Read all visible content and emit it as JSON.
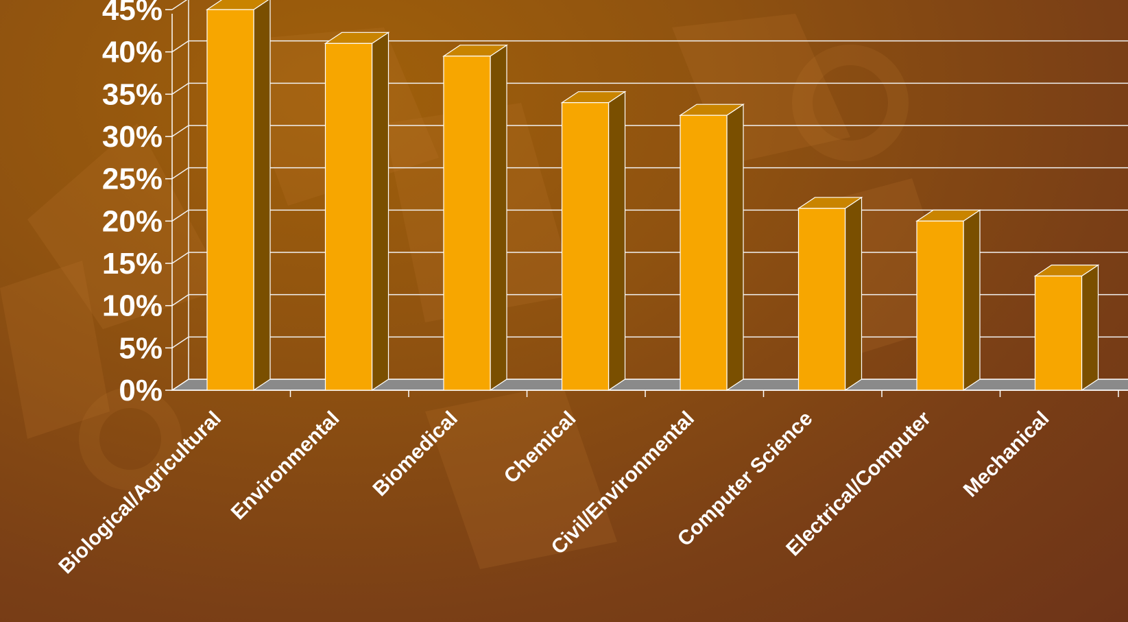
{
  "chart_data": {
    "type": "bar",
    "style": "3d",
    "categories": [
      "Biological/Agricultural",
      "Environmental",
      "Biomedical",
      "Chemical",
      "Civil/Environmental",
      "Computer Science",
      "Electrical/Computer",
      "Mechanical"
    ],
    "values": [
      45,
      41,
      39.5,
      34,
      32.5,
      21.5,
      20,
      13.5
    ],
    "ylim": [
      0,
      45
    ],
    "yticks": [
      "0%",
      "5%",
      "10%",
      "15%",
      "20%",
      "25%",
      "30%",
      "35%",
      "40%",
      "45%"
    ],
    "grid": true,
    "legend": "none",
    "colors": {
      "bar_front": "#f7a600",
      "bar_top": "#c98400",
      "bar_side": "#7a4f00",
      "floor": "#8a8a8a",
      "grid": "#f2f2f2",
      "text": "#ffffff"
    }
  }
}
